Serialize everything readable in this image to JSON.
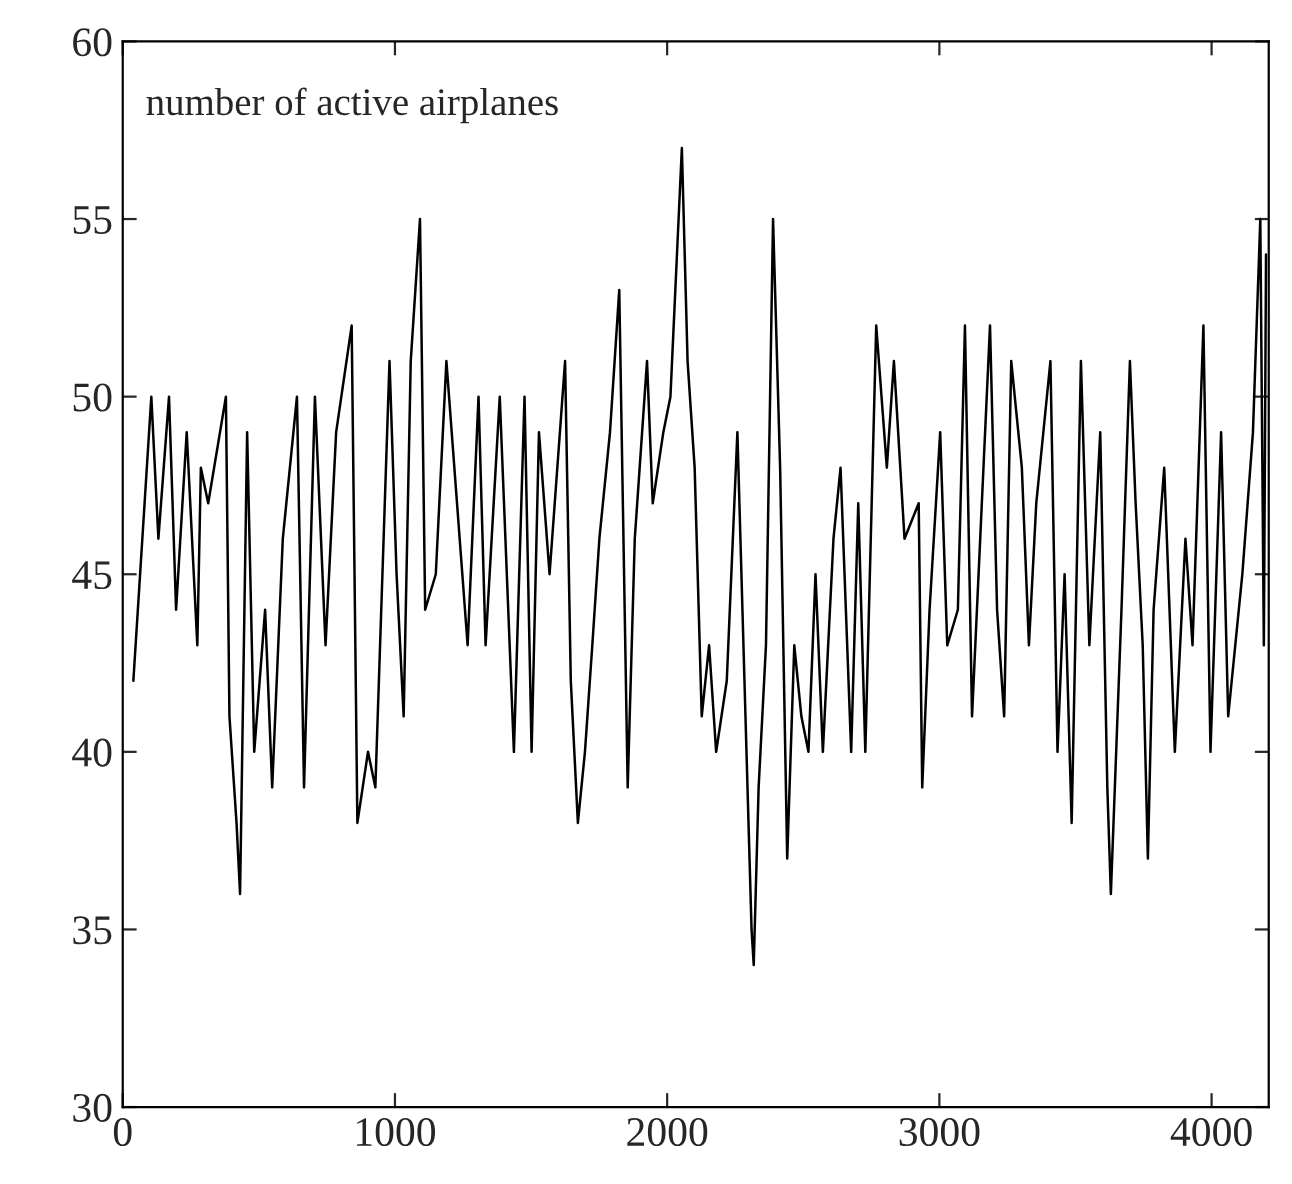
{
  "chart_data": {
    "type": "line",
    "annotations": [
      "number of active airplanes"
    ],
    "x": [
      39,
      105,
      131,
      170,
      196,
      235,
      274,
      287,
      314,
      379,
      392,
      418,
      431,
      457,
      483,
      523,
      549,
      588,
      640,
      666,
      706,
      745,
      784,
      841,
      862,
      901,
      928,
      980,
      1006,
      1032,
      1058,
      1092,
      1111,
      1150,
      1189,
      1228,
      1267,
      1307,
      1333,
      1385,
      1437,
      1476,
      1502,
      1529,
      1568,
      1625,
      1646,
      1672,
      1698,
      1725,
      1751,
      1790,
      1824,
      1855,
      1881,
      1926,
      1947,
      1986,
      2012,
      2054,
      2075,
      2101,
      2127,
      2154,
      2180,
      2219,
      2258,
      2284,
      2310,
      2318,
      2336,
      2363,
      2389,
      2415,
      2441,
      2467,
      2493,
      2519,
      2545,
      2572,
      2611,
      2637,
      2676,
      2702,
      2728,
      2768,
      2807,
      2833,
      2872,
      2924,
      2937,
      2964,
      3003,
      3029,
      3068,
      3094,
      3120,
      3186,
      3212,
      3238,
      3264,
      3303,
      3329,
      3356,
      3408,
      3434,
      3460,
      3486,
      3520,
      3551,
      3591,
      3617,
      3630,
      3669,
      3700,
      3721,
      3747,
      3766,
      3787,
      3826,
      3865,
      3904,
      3930,
      3970,
      3996,
      4035,
      4061,
      4113,
      4152,
      4179,
      4192,
      4200
    ],
    "series": [
      {
        "color": "#000000",
        "values": [
          42,
          50,
          46,
          50,
          44,
          49,
          43,
          48,
          47,
          50,
          41,
          38,
          36,
          49,
          40,
          44,
          39,
          46,
          50,
          39,
          50,
          43,
          49,
          52,
          38,
          40,
          39,
          51,
          45,
          41,
          51,
          55,
          44,
          45,
          51,
          47,
          43,
          50,
          43,
          50,
          40,
          50,
          40,
          49,
          45,
          51,
          42,
          38,
          40,
          43,
          46,
          49,
          53,
          39,
          46,
          51,
          47,
          49,
          50,
          57,
          51,
          48,
          41,
          43,
          40,
          42,
          49,
          42,
          35,
          34,
          39,
          43,
          55,
          48,
          37,
          43,
          41,
          40,
          45,
          40,
          46,
          48,
          40,
          47,
          40,
          52,
          48,
          51,
          46,
          47,
          39,
          44,
          49,
          43,
          44,
          52,
          41,
          52,
          44,
          41,
          51,
          48,
          43,
          47,
          51,
          40,
          45,
          38,
          51,
          43,
          49,
          39,
          36,
          44,
          51,
          47,
          43,
          37,
          44,
          48,
          40,
          46,
          43,
          52,
          40,
          49,
          41,
          45,
          49,
          55,
          43,
          54
        ]
      }
    ],
    "xlim": [
      0,
      4210
    ],
    "ylim": [
      30,
      60
    ],
    "xticks": [
      0,
      1000,
      2000,
      3000,
      4000
    ],
    "yticks": [
      30,
      35,
      40,
      45,
      50,
      55,
      60
    ],
    "grid": false,
    "line_style": "solid",
    "marker": "none"
  }
}
